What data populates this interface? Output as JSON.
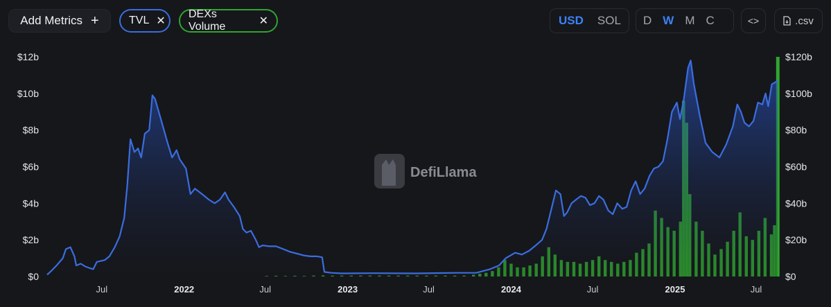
{
  "toolbar": {
    "add_metrics_label": "Add Metrics",
    "add_icon": "+",
    "chips": [
      {
        "label": "TVL",
        "color": "#3b6de0",
        "remove_icon": "✕"
      },
      {
        "label": "DEXs Volume",
        "color": "#2fa62f",
        "remove_icon": "✕"
      }
    ],
    "currency_options": [
      "USD",
      "SOL"
    ],
    "currency_selected": "USD",
    "period_options": [
      "D",
      "W",
      "M",
      "C"
    ],
    "period_selected": "W",
    "embed_icon": "<>",
    "csv_label": ".csv"
  },
  "watermark": "DefiLlama",
  "chart_data": {
    "type": "area",
    "grid": false,
    "legend": "none",
    "x_range": [
      "2021-03-01",
      "2025-08-18"
    ],
    "x_tick_labels": [
      {
        "date": "2021-07-01",
        "label": "Jul",
        "bold": false
      },
      {
        "date": "2022-01-01",
        "label": "2022",
        "bold": true
      },
      {
        "date": "2022-07-01",
        "label": "Jul",
        "bold": false
      },
      {
        "date": "2023-01-01",
        "label": "2023",
        "bold": true
      },
      {
        "date": "2023-07-01",
        "label": "Jul",
        "bold": false
      },
      {
        "date": "2024-01-01",
        "label": "2024",
        "bold": true
      },
      {
        "date": "2024-07-01",
        "label": "Jul",
        "bold": false
      },
      {
        "date": "2025-01-01",
        "label": "2025",
        "bold": true
      },
      {
        "date": "2025-07-01",
        "label": "Jul",
        "bold": false
      }
    ],
    "left_axis": {
      "unit": "USD",
      "ylim": [
        0,
        12
      ],
      "ticks": [
        "$0",
        "$2b",
        "$4b",
        "$6b",
        "$8b",
        "$10b",
        "$12b"
      ]
    },
    "right_axis": {
      "unit": "USD",
      "ylim": [
        0,
        120
      ],
      "ticks": [
        "$0",
        "$20b",
        "$40b",
        "$60b",
        "$80b",
        "$100b",
        "$120b"
      ]
    },
    "series": [
      {
        "name": "TVL",
        "axis": "left",
        "type": "area",
        "color": "#3b6de0",
        "points": [
          [
            "2021-03-01",
            0.1
          ],
          [
            "2021-03-10",
            0.3
          ],
          [
            "2021-03-22",
            0.6
          ],
          [
            "2021-04-05",
            1.0
          ],
          [
            "2021-04-12",
            1.5
          ],
          [
            "2021-04-22",
            1.6
          ],
          [
            "2021-05-01",
            1.1
          ],
          [
            "2021-05-05",
            0.6
          ],
          [
            "2021-05-15",
            0.7
          ],
          [
            "2021-05-25",
            0.55
          ],
          [
            "2021-06-05",
            0.45
          ],
          [
            "2021-06-12",
            0.4
          ],
          [
            "2021-06-20",
            0.8
          ],
          [
            "2021-07-08",
            0.9
          ],
          [
            "2021-07-18",
            1.1
          ],
          [
            "2021-07-30",
            1.6
          ],
          [
            "2021-08-10",
            2.2
          ],
          [
            "2021-08-20",
            3.2
          ],
          [
            "2021-08-27",
            5.0
          ],
          [
            "2021-09-03",
            7.5
          ],
          [
            "2021-09-12",
            6.8
          ],
          [
            "2021-09-20",
            7.0
          ],
          [
            "2021-09-27",
            6.5
          ],
          [
            "2021-10-05",
            7.8
          ],
          [
            "2021-10-15",
            8.0
          ],
          [
            "2021-10-22",
            9.9
          ],
          [
            "2021-10-28",
            9.7
          ],
          [
            "2021-11-10",
            8.6
          ],
          [
            "2021-11-25",
            7.3
          ],
          [
            "2021-12-05",
            6.5
          ],
          [
            "2021-12-15",
            6.9
          ],
          [
            "2021-12-22",
            6.4
          ],
          [
            "2022-01-05",
            5.9
          ],
          [
            "2022-01-15",
            4.5
          ],
          [
            "2022-01-25",
            4.8
          ],
          [
            "2022-02-10",
            4.5
          ],
          [
            "2022-02-25",
            4.2
          ],
          [
            "2022-03-10",
            4.0
          ],
          [
            "2022-03-22",
            4.2
          ],
          [
            "2022-04-02",
            4.6
          ],
          [
            "2022-04-10",
            4.2
          ],
          [
            "2022-04-22",
            3.8
          ],
          [
            "2022-05-05",
            3.3
          ],
          [
            "2022-05-12",
            2.6
          ],
          [
            "2022-05-20",
            2.4
          ],
          [
            "2022-05-30",
            2.5
          ],
          [
            "2022-06-10",
            2.0
          ],
          [
            "2022-06-17",
            1.6
          ],
          [
            "2022-06-25",
            1.7
          ],
          [
            "2022-07-10",
            1.65
          ],
          [
            "2022-07-25",
            1.65
          ],
          [
            "2022-08-10",
            1.5
          ],
          [
            "2022-08-25",
            1.35
          ],
          [
            "2022-09-10",
            1.25
          ],
          [
            "2022-09-25",
            1.15
          ],
          [
            "2022-10-10",
            1.1
          ],
          [
            "2022-10-25",
            1.1
          ],
          [
            "2022-11-05",
            1.05
          ],
          [
            "2022-11-10",
            0.25
          ],
          [
            "2022-11-25",
            0.2
          ],
          [
            "2022-12-20",
            0.17
          ],
          [
            "2023-03-01",
            0.18
          ],
          [
            "2023-06-01",
            0.17
          ],
          [
            "2023-09-01",
            0.2
          ],
          [
            "2023-10-15",
            0.2
          ],
          [
            "2023-11-15",
            0.4
          ],
          [
            "2023-12-05",
            0.6
          ],
          [
            "2023-12-20",
            1.0
          ],
          [
            "2024-01-10",
            1.3
          ],
          [
            "2024-01-25",
            1.2
          ],
          [
            "2024-02-10",
            1.4
          ],
          [
            "2024-02-25",
            1.7
          ],
          [
            "2024-03-10",
            2.0
          ],
          [
            "2024-03-20",
            2.6
          ],
          [
            "2024-04-01",
            3.8
          ],
          [
            "2024-04-10",
            4.7
          ],
          [
            "2024-04-20",
            4.5
          ],
          [
            "2024-04-28",
            3.3
          ],
          [
            "2024-05-05",
            3.5
          ],
          [
            "2024-05-15",
            4.0
          ],
          [
            "2024-05-25",
            4.2
          ],
          [
            "2024-06-05",
            4.4
          ],
          [
            "2024-06-15",
            4.3
          ],
          [
            "2024-06-25",
            3.9
          ],
          [
            "2024-07-05",
            4.0
          ],
          [
            "2024-07-15",
            4.4
          ],
          [
            "2024-07-25",
            4.2
          ],
          [
            "2024-08-05",
            3.6
          ],
          [
            "2024-08-15",
            3.4
          ],
          [
            "2024-08-25",
            4.0
          ],
          [
            "2024-09-05",
            3.7
          ],
          [
            "2024-09-15",
            3.8
          ],
          [
            "2024-09-25",
            4.7
          ],
          [
            "2024-10-05",
            5.2
          ],
          [
            "2024-10-15",
            4.5
          ],
          [
            "2024-10-25",
            4.8
          ],
          [
            "2024-11-05",
            5.5
          ],
          [
            "2024-11-15",
            5.9
          ],
          [
            "2024-11-25",
            6.0
          ],
          [
            "2024-12-05",
            6.3
          ],
          [
            "2024-12-15",
            7.5
          ],
          [
            "2024-12-25",
            9.0
          ],
          [
            "2025-01-05",
            9.5
          ],
          [
            "2025-01-12",
            8.6
          ],
          [
            "2025-01-20",
            9.6
          ],
          [
            "2025-01-30",
            11.4
          ],
          [
            "2025-02-05",
            11.8
          ],
          [
            "2025-02-12",
            10.5
          ],
          [
            "2025-02-25",
            8.8
          ],
          [
            "2025-03-10",
            7.3
          ],
          [
            "2025-03-25",
            6.8
          ],
          [
            "2025-04-10",
            6.5
          ],
          [
            "2025-04-25",
            7.2
          ],
          [
            "2025-05-10",
            8.2
          ],
          [
            "2025-05-20",
            9.4
          ],
          [
            "2025-05-28",
            9.0
          ],
          [
            "2025-06-05",
            8.4
          ],
          [
            "2025-06-15",
            8.2
          ],
          [
            "2025-06-25",
            8.5
          ],
          [
            "2025-07-05",
            9.5
          ],
          [
            "2025-07-15",
            9.4
          ],
          [
            "2025-07-22",
            10.0
          ],
          [
            "2025-07-28",
            9.3
          ],
          [
            "2025-08-05",
            10.5
          ],
          [
            "2025-08-12",
            10.6
          ],
          [
            "2025-08-18",
            10.7
          ]
        ]
      },
      {
        "name": "DEXs Volume",
        "axis": "right",
        "type": "bar",
        "color": "#2fa62f",
        "points": [
          [
            "2022-07-04",
            0.3
          ],
          [
            "2022-07-25",
            0.4
          ],
          [
            "2022-08-15",
            0.3
          ],
          [
            "2022-09-05",
            0.4
          ],
          [
            "2022-09-26",
            0.3
          ],
          [
            "2022-10-17",
            0.5
          ],
          [
            "2022-11-07",
            0.6
          ],
          [
            "2022-11-28",
            0.5
          ],
          [
            "2022-12-19",
            0.5
          ],
          [
            "2023-01-09",
            0.5
          ],
          [
            "2023-01-30",
            0.5
          ],
          [
            "2023-02-20",
            0.5
          ],
          [
            "2023-03-13",
            0.5
          ],
          [
            "2023-04-03",
            0.5
          ],
          [
            "2023-04-24",
            0.5
          ],
          [
            "2023-05-15",
            0.5
          ],
          [
            "2023-06-05",
            0.5
          ],
          [
            "2023-06-26",
            0.5
          ],
          [
            "2023-07-17",
            0.5
          ],
          [
            "2023-08-07",
            0.5
          ],
          [
            "2023-08-28",
            0.5
          ],
          [
            "2023-09-18",
            0.5
          ],
          [
            "2023-10-09",
            1.0
          ],
          [
            "2023-10-23",
            1.5
          ],
          [
            "2023-11-06",
            2.0
          ],
          [
            "2023-11-20",
            3.0
          ],
          [
            "2023-12-04",
            5.0
          ],
          [
            "2023-12-18",
            9.0
          ],
          [
            "2024-01-01",
            7.0
          ],
          [
            "2024-01-15",
            5.0
          ],
          [
            "2024-01-29",
            5.0
          ],
          [
            "2024-02-12",
            6.0
          ],
          [
            "2024-02-26",
            7.0
          ],
          [
            "2024-03-11",
            11.0
          ],
          [
            "2024-03-25",
            16.0
          ],
          [
            "2024-04-08",
            12.0
          ],
          [
            "2024-04-22",
            9.0
          ],
          [
            "2024-05-06",
            8.0
          ],
          [
            "2024-05-20",
            8.0
          ],
          [
            "2024-06-03",
            7.0
          ],
          [
            "2024-06-17",
            8.0
          ],
          [
            "2024-07-01",
            9.0
          ],
          [
            "2024-07-15",
            11.0
          ],
          [
            "2024-07-29",
            9.0
          ],
          [
            "2024-08-12",
            8.0
          ],
          [
            "2024-08-26",
            7.0
          ],
          [
            "2024-09-09",
            8.0
          ],
          [
            "2024-09-23",
            9.0
          ],
          [
            "2024-10-07",
            13.0
          ],
          [
            "2024-10-21",
            15.0
          ],
          [
            "2024-11-04",
            18.0
          ],
          [
            "2024-11-18",
            36.0
          ],
          [
            "2024-12-02",
            32.0
          ],
          [
            "2024-12-16",
            27.0
          ],
          [
            "2024-12-30",
            25.0
          ],
          [
            "2025-01-13",
            30.0
          ],
          [
            "2025-01-20",
            96.0
          ],
          [
            "2025-01-27",
            84.0
          ],
          [
            "2025-02-03",
            45.0
          ],
          [
            "2025-02-17",
            30.0
          ],
          [
            "2025-03-03",
            25.0
          ],
          [
            "2025-03-17",
            18.0
          ],
          [
            "2025-03-31",
            12.0
          ],
          [
            "2025-04-14",
            15.0
          ],
          [
            "2025-04-28",
            19.0
          ],
          [
            "2025-05-12",
            25.0
          ],
          [
            "2025-05-26",
            35.0
          ],
          [
            "2025-06-09",
            22.0
          ],
          [
            "2025-06-23",
            20.0
          ],
          [
            "2025-07-07",
            25.0
          ],
          [
            "2025-07-21",
            32.0
          ],
          [
            "2025-08-04",
            23.0
          ],
          [
            "2025-08-11",
            28.0
          ],
          [
            "2025-08-18",
            120.0
          ]
        ]
      }
    ]
  }
}
